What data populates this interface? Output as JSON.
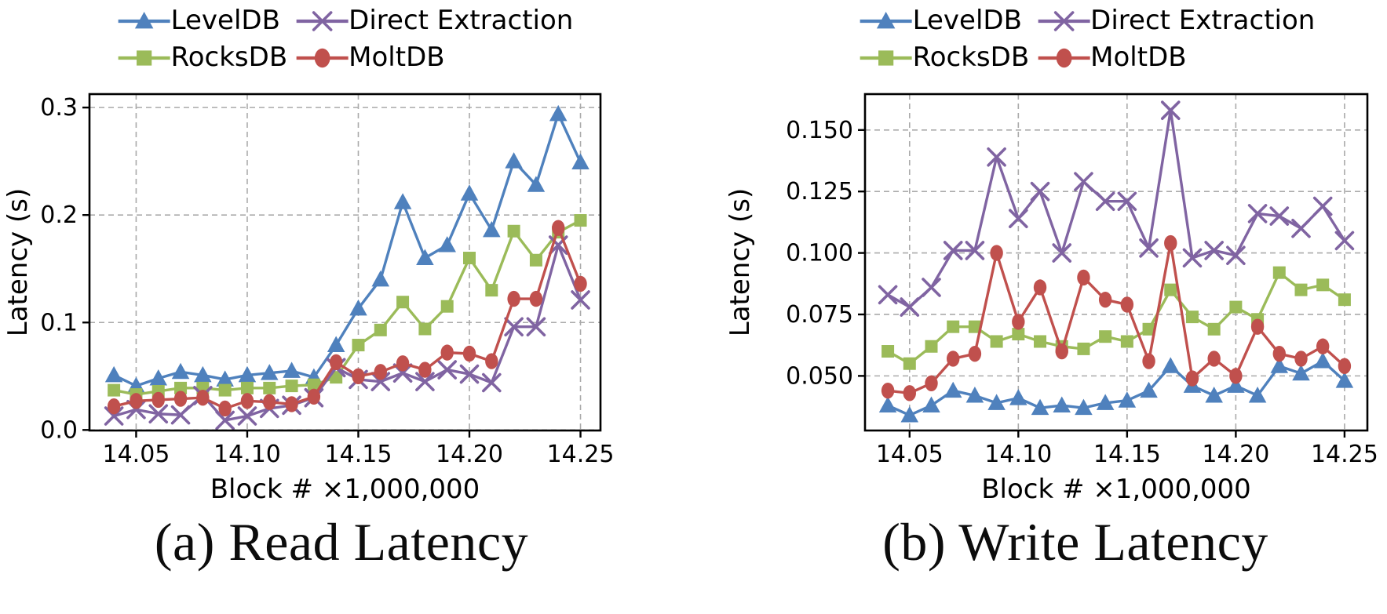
{
  "figure": {
    "y_label": "Latency (s)",
    "x_label": "Block # ×1,000,000",
    "colors": {
      "leveldb_blue": "#4F81BD",
      "rocksdb_green": "#9BBB59",
      "direct_extraction_purple": "#8064A2",
      "moltdb_red": "#C0504D",
      "grid_gray": "#aaaaaa",
      "axis_black": "#000000"
    },
    "legend": [
      {
        "label": "LevelDB",
        "marker": "triangle",
        "color": "#4F81BD"
      },
      {
        "label": "RocksDB",
        "marker": "square",
        "color": "#9BBB59"
      },
      {
        "label": "Direct Extraction",
        "marker": "x",
        "color": "#8064A2"
      },
      {
        "label": "MoltDB",
        "marker": "circle",
        "color": "#C0504D"
      }
    ]
  },
  "chart_data": [
    {
      "type": "line",
      "title": "(a)  Read Latency",
      "xlabel": "Block # ×1,000,000",
      "ylabel": "Latency (s)",
      "grid": true,
      "legend_position": "above plot, two columns, no frame",
      "xlim": [
        14.029,
        14.259
      ],
      "ylim": [
        -0.0005,
        0.3125
      ],
      "x_ticks": [
        14.05,
        14.1,
        14.15,
        14.2,
        14.25
      ],
      "x_tick_labels": [
        "14.05",
        "14.10",
        "14.15",
        "14.20",
        "14.25"
      ],
      "y_ticks": [
        0.0,
        0.1,
        0.2,
        0.3
      ],
      "y_tick_labels": [
        "0.0",
        "0.1",
        "0.2",
        "0.3"
      ],
      "x": [
        14.04,
        14.05,
        14.06,
        14.07,
        14.08,
        14.09,
        14.1,
        14.11,
        14.12,
        14.13,
        14.14,
        14.15,
        14.16,
        14.17,
        14.18,
        14.19,
        14.2,
        14.21,
        14.22,
        14.23,
        14.24,
        14.25
      ],
      "series": [
        {
          "name": "LevelDB",
          "marker": "triangle",
          "color": "#4F81BD",
          "values": [
            0.051,
            0.041,
            0.048,
            0.054,
            0.051,
            0.047,
            0.051,
            0.053,
            0.055,
            0.049,
            0.079,
            0.113,
            0.14,
            0.212,
            0.16,
            0.172,
            0.22,
            0.186,
            0.25,
            0.228,
            0.294,
            0.249
          ]
        },
        {
          "name": "RocksDB",
          "marker": "square",
          "color": "#9BBB59",
          "values": [
            0.037,
            0.033,
            0.036,
            0.039,
            0.039,
            0.037,
            0.039,
            0.039,
            0.041,
            0.042,
            0.049,
            0.079,
            0.093,
            0.119,
            0.094,
            0.115,
            0.16,
            0.13,
            0.185,
            0.158,
            0.184,
            0.195
          ]
        },
        {
          "name": "Direct Extraction",
          "marker": "x",
          "color": "#8064A2",
          "values": [
            0.013,
            0.019,
            0.015,
            0.014,
            0.032,
            0.009,
            0.013,
            0.02,
            0.023,
            0.03,
            0.058,
            0.047,
            0.045,
            0.053,
            0.045,
            0.056,
            0.052,
            0.044,
            0.096,
            0.096,
            0.172,
            0.121
          ]
        },
        {
          "name": "MoltDB",
          "marker": "circle",
          "color": "#C0504D",
          "values": [
            0.022,
            0.027,
            0.028,
            0.029,
            0.03,
            0.02,
            0.027,
            0.026,
            0.024,
            0.031,
            0.063,
            0.05,
            0.054,
            0.062,
            0.056,
            0.072,
            0.071,
            0.064,
            0.122,
            0.122,
            0.188,
            0.136
          ]
        }
      ]
    },
    {
      "type": "line",
      "title": "(b)  Write Latency",
      "xlabel": "Block # ×1,000,000",
      "ylabel": "Latency (s)",
      "grid": true,
      "legend_position": "above plot, two columns, no frame",
      "xlim": [
        14.0295,
        14.2605
      ],
      "ylim": [
        0.0278,
        0.1646
      ],
      "x_ticks": [
        14.05,
        14.1,
        14.15,
        14.2,
        14.25
      ],
      "x_tick_labels": [
        "14.05",
        "14.10",
        "14.15",
        "14.20",
        "14.25"
      ],
      "y_ticks": [
        0.05,
        0.075,
        0.1,
        0.125,
        0.15
      ],
      "y_tick_labels": [
        "0.050",
        "0.075",
        "0.100",
        "0.125",
        "0.150"
      ],
      "x": [
        14.04,
        14.05,
        14.06,
        14.07,
        14.08,
        14.09,
        14.1,
        14.11,
        14.12,
        14.13,
        14.14,
        14.15,
        14.16,
        14.17,
        14.18,
        14.19,
        14.2,
        14.21,
        14.22,
        14.23,
        14.24,
        14.25
      ],
      "series": [
        {
          "name": "LevelDB",
          "marker": "triangle",
          "color": "#4F81BD",
          "values": [
            0.038,
            0.034,
            0.038,
            0.044,
            0.042,
            0.039,
            0.041,
            0.037,
            0.038,
            0.037,
            0.039,
            0.04,
            0.044,
            0.054,
            0.046,
            0.042,
            0.046,
            0.042,
            0.054,
            0.051,
            0.056,
            0.048
          ]
        },
        {
          "name": "RocksDB",
          "marker": "square",
          "color": "#9BBB59",
          "values": [
            0.06,
            0.055,
            0.062,
            0.07,
            0.07,
            0.064,
            0.067,
            0.064,
            0.062,
            0.061,
            0.066,
            0.064,
            0.069,
            0.085,
            0.074,
            0.069,
            0.078,
            0.073,
            0.092,
            0.085,
            0.087,
            0.081
          ]
        },
        {
          "name": "Direct Extraction",
          "marker": "x",
          "color": "#8064A2",
          "values": [
            0.083,
            0.078,
            0.086,
            0.101,
            0.101,
            0.139,
            0.114,
            0.125,
            0.1,
            0.129,
            0.121,
            0.121,
            0.102,
            0.158,
            0.098,
            0.101,
            0.099,
            0.116,
            0.115,
            0.11,
            0.119,
            0.105
          ]
        },
        {
          "name": "MoltDB",
          "marker": "circle",
          "color": "#C0504D",
          "values": [
            0.044,
            0.043,
            0.047,
            0.057,
            0.059,
            0.1,
            0.072,
            0.086,
            0.06,
            0.09,
            0.081,
            0.079,
            0.056,
            0.104,
            0.049,
            0.057,
            0.05,
            0.07,
            0.059,
            0.057,
            0.062,
            0.054
          ]
        }
      ]
    }
  ]
}
